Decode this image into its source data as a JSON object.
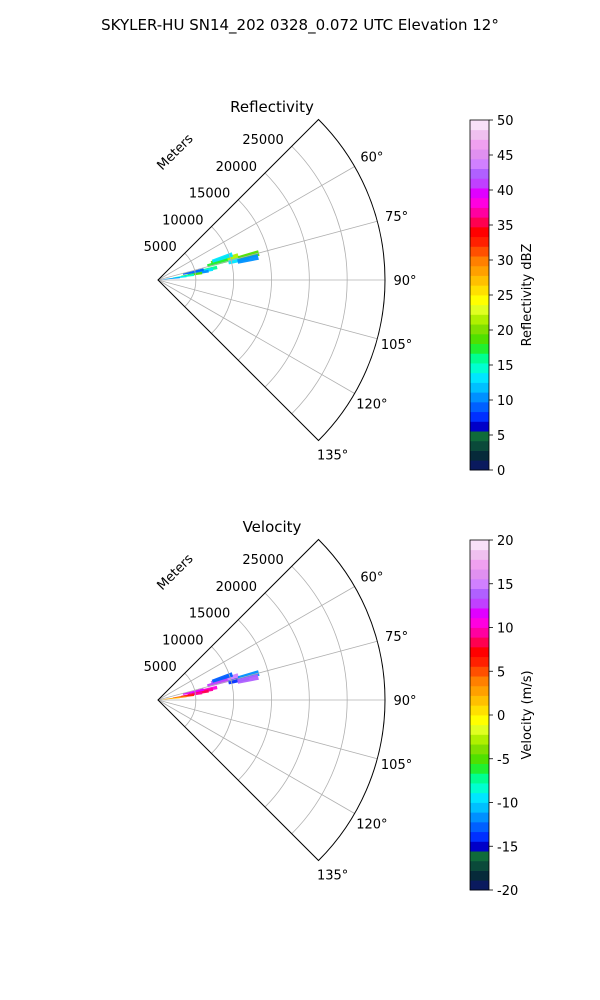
{
  "title": "SKYLER-HU  SN14_202  0328_0.072 UTC Elevation 12°",
  "chart_data": [
    {
      "type": "heatmap",
      "subtype": "polar-sector (radar PPI)",
      "title": "Reflectivity",
      "range_label": "Meters",
      "range_ticks": [
        "5000",
        "10000",
        "15000",
        "20000",
        "25000"
      ],
      "range_tick_values": [
        5000,
        10000,
        15000,
        20000,
        25000
      ],
      "range_max": 30000,
      "azimuth_range_deg": [
        45,
        135
      ],
      "azimuth_ticks": [
        "60°",
        "75°",
        "90°",
        "105°",
        "120°",
        "135°"
      ],
      "azimuth_tick_values": [
        60,
        75,
        90,
        105,
        120,
        135
      ],
      "grid": true,
      "colorbar": {
        "label": "Reflectivity dBZ",
        "ticks": [
          "0",
          "5",
          "10",
          "15",
          "20",
          "25",
          "30",
          "35",
          "40",
          "45",
          "50"
        ],
        "vmin": 0,
        "vmax": 50,
        "colors": [
          "#0a1a5e",
          "#062a3a",
          "#0a4a3a",
          "#0f6b3a",
          "#0000c8",
          "#0030ff",
          "#0060ff",
          "#0090ff",
          "#00c0ff",
          "#00e6ff",
          "#00ffd0",
          "#00ff90",
          "#20f030",
          "#50e000",
          "#80e000",
          "#b0f000",
          "#e0ff20",
          "#ffff00",
          "#ffe000",
          "#ffc000",
          "#ffa000",
          "#ff8000",
          "#ff5000",
          "#ff2000",
          "#ff0000",
          "#ff0050",
          "#ff00a0",
          "#ff00e0",
          "#e000ff",
          "#c040ff",
          "#b060ff",
          "#d080ff",
          "#e090f0",
          "#f0a0f0",
          "#f0c0f0",
          "#f8e0f8"
        ]
      },
      "echo_cells": [
        {
          "az": 72,
          "range": 8800,
          "value": 19
        },
        {
          "az": 73,
          "range": 9700,
          "value": 21
        },
        {
          "az": 74,
          "range": 8200,
          "value": 17
        },
        {
          "az": 71,
          "range": 9000,
          "value": 13
        },
        {
          "az": 76,
          "range": 11000,
          "value": 13
        },
        {
          "az": 75,
          "range": 12400,
          "value": 19
        },
        {
          "az": 77,
          "range": 12200,
          "value": 11
        },
        {
          "az": 78,
          "range": 6600,
          "value": 16
        },
        {
          "az": 79,
          "range": 6000,
          "value": 13
        },
        {
          "az": 80,
          "range": 5400,
          "value": 11
        },
        {
          "az": 81,
          "range": 4500,
          "value": 19
        },
        {
          "az": 82,
          "range": 3400,
          "value": 15
        },
        {
          "az": 83,
          "range": 2400,
          "value": 13
        },
        {
          "az": 84,
          "range": 1500,
          "value": 11
        },
        {
          "az": 77,
          "range": 4800,
          "value": 9
        }
      ]
    },
    {
      "type": "heatmap",
      "subtype": "polar-sector (radar PPI)",
      "title": "Velocity",
      "range_label": "Meters",
      "range_ticks": [
        "5000",
        "10000",
        "15000",
        "20000",
        "25000"
      ],
      "range_tick_values": [
        5000,
        10000,
        15000,
        20000,
        25000
      ],
      "range_max": 30000,
      "azimuth_range_deg": [
        45,
        135
      ],
      "azimuth_ticks": [
        "60°",
        "75°",
        "90°",
        "105°",
        "120°",
        "135°"
      ],
      "azimuth_tick_values": [
        60,
        75,
        90,
        105,
        120,
        135
      ],
      "grid": true,
      "colorbar": {
        "label": "Velocity (m/s)",
        "ticks": [
          "-20",
          "-15",
          "-10",
          "-5",
          "0",
          "5",
          "10",
          "15",
          "20"
        ],
        "vmin": -20,
        "vmax": 20,
        "colors": [
          "#0a1a5e",
          "#062a3a",
          "#0a4a3a",
          "#0f6b3a",
          "#0000c8",
          "#0030ff",
          "#0060ff",
          "#0090ff",
          "#00c0ff",
          "#00e6ff",
          "#00ffd0",
          "#00ff90",
          "#20f030",
          "#50e000",
          "#80e000",
          "#b0f000",
          "#e0ff20",
          "#ffff00",
          "#ffe000",
          "#ffc000",
          "#ffa000",
          "#ff8000",
          "#ff5000",
          "#ff2000",
          "#ff0000",
          "#ff0050",
          "#ff00a0",
          "#ff00e0",
          "#e000ff",
          "#c040ff",
          "#b060ff",
          "#d080ff",
          "#e090f0",
          "#f0a0f0",
          "#f0c0f0",
          "#f8e0f8"
        ]
      },
      "echo_cells": [
        {
          "az": 72,
          "range": 8800,
          "value": 14
        },
        {
          "az": 73,
          "range": 9700,
          "value": 15
        },
        {
          "az": 74,
          "range": 8200,
          "value": 13
        },
        {
          "az": 71,
          "range": 9000,
          "value": -13
        },
        {
          "az": 76,
          "range": 11000,
          "value": -14
        },
        {
          "az": 75,
          "range": 12400,
          "value": -12
        },
        {
          "az": 77,
          "range": 12200,
          "value": 14
        },
        {
          "az": 78,
          "range": 6600,
          "value": 11
        },
        {
          "az": 79,
          "range": 6000,
          "value": 9
        },
        {
          "az": 80,
          "range": 5400,
          "value": 8
        },
        {
          "az": 81,
          "range": 4500,
          "value": 9
        },
        {
          "az": 82,
          "range": 3400,
          "value": 6
        },
        {
          "az": 83,
          "range": 2400,
          "value": 4
        },
        {
          "az": 84,
          "range": 1500,
          "value": 2
        },
        {
          "az": 77,
          "range": 4800,
          "value": 12
        }
      ]
    }
  ]
}
